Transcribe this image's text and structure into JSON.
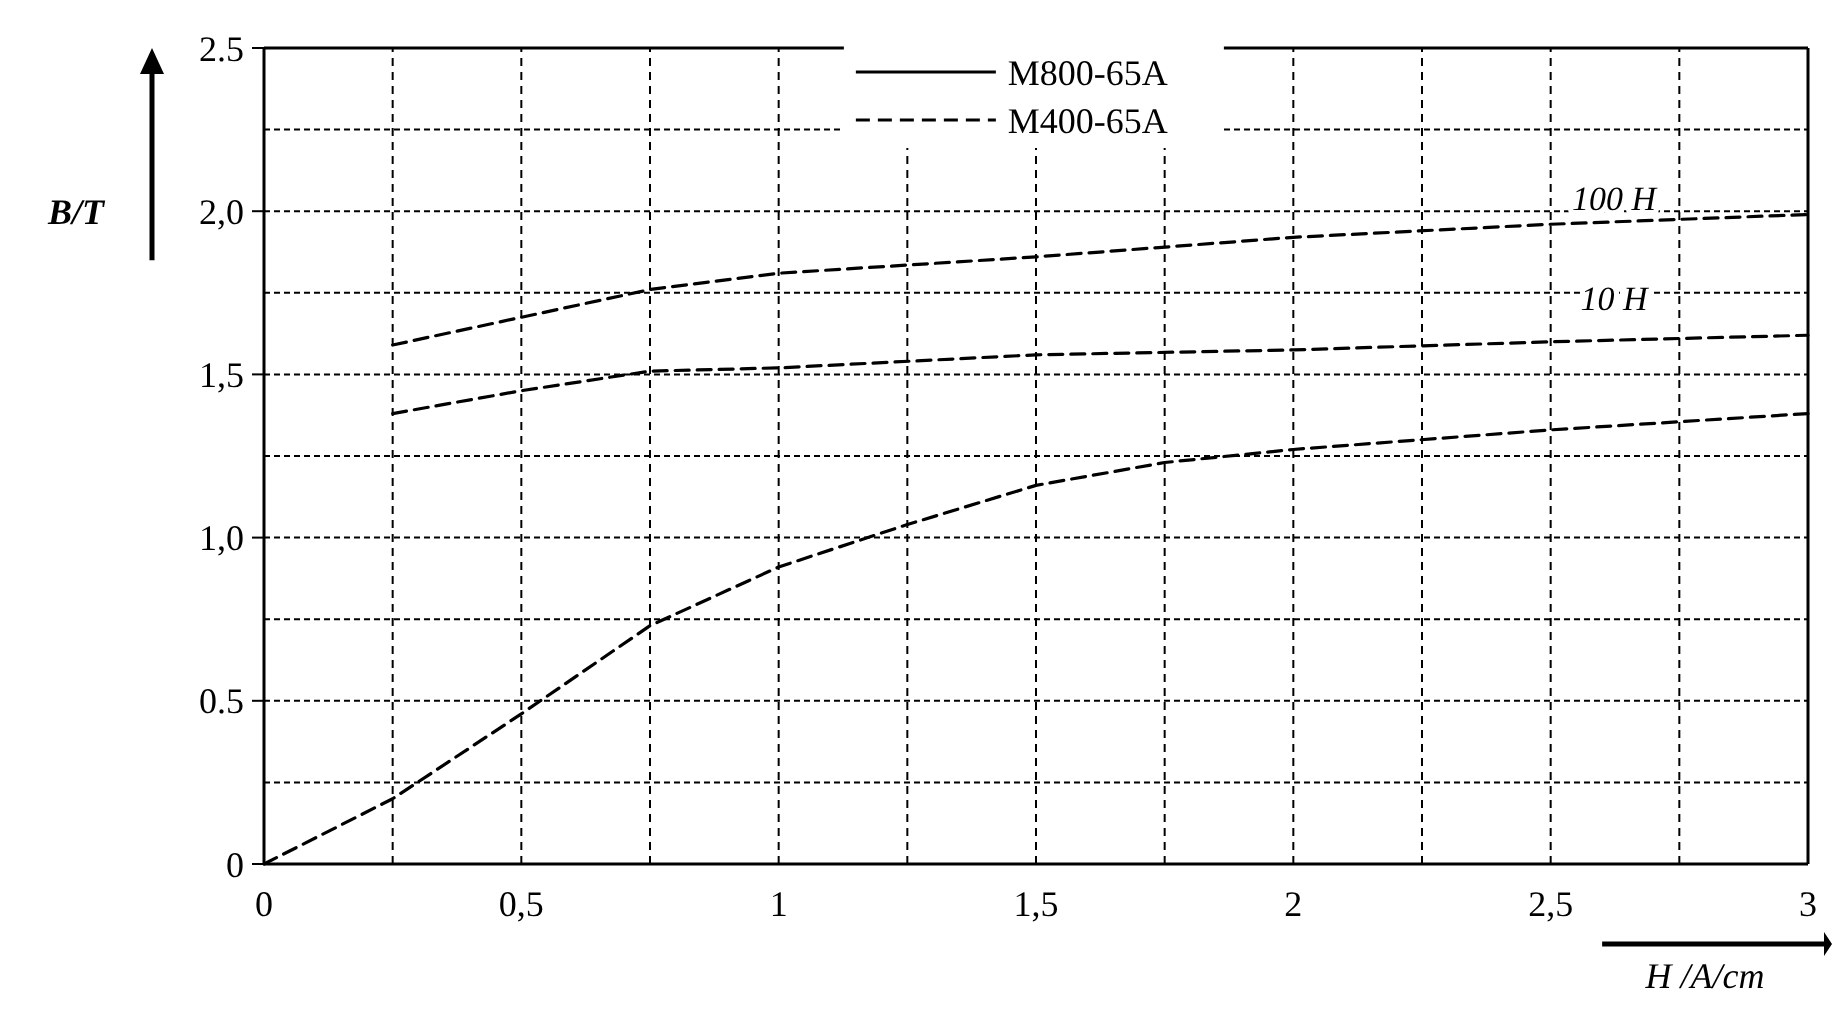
{
  "chart_data": {
    "type": "line",
    "xlabel": "H /A/cm",
    "ylabel": "B/T",
    "xlim": [
      0,
      3
    ],
    "ylim": [
      0,
      2.5
    ],
    "xticks": [
      0,
      {
        "value": 0.25,
        "label": null
      },
      {
        "value": 0.5,
        "label": "0,5"
      },
      {
        "value": 0.75,
        "label": null
      },
      1,
      {
        "value": 1.25,
        "label": null
      },
      {
        "value": 1.5,
        "label": "1,5"
      },
      {
        "value": 1.75,
        "label": null
      },
      2,
      {
        "value": 2.25,
        "label": null
      },
      {
        "value": 2.5,
        "label": "2,5"
      },
      {
        "value": 2.75,
        "label": null
      },
      3
    ],
    "yticks": [
      0,
      {
        "value": 0.25,
        "label": null
      },
      0.5,
      {
        "value": 0.75,
        "label": null
      },
      {
        "value": 1,
        "label": "1,0"
      },
      {
        "value": 1.25,
        "label": null
      },
      {
        "value": 1.5,
        "label": "1,5"
      },
      {
        "value": 1.75,
        "label": null
      },
      {
        "value": 2,
        "label": "2,0"
      },
      {
        "value": 2.25,
        "label": null
      },
      2.5
    ],
    "grid": true,
    "legend": "top",
    "series": [
      {
        "name": "M800-65A",
        "color": "#000000",
        "line_style": "solid"
      },
      {
        "name": "M400-65A",
        "color": "#000000",
        "line_style": "dashed",
        "x": [
          0,
          0.25,
          0.5,
          0.75,
          1,
          1.25,
          1.5,
          1.75,
          2,
          2.5,
          3
        ],
        "values": [
          0,
          0.2,
          0.46,
          0.73,
          0.91,
          1.04,
          1.16,
          1.23,
          1.27,
          1.33,
          1.38
        ]
      },
      {
        "color": "#000000",
        "line_style": "dashed",
        "x": [
          0.25,
          0.5,
          0.75,
          1,
          1.5,
          2,
          2.5,
          3
        ],
        "values": [
          1.38,
          1.45,
          1.51,
          1.52,
          1.56,
          1.575,
          1.6,
          1.62
        ]
      },
      {
        "color": "#000000",
        "line_style": "dashed",
        "x": [
          0.25,
          0.75,
          1,
          1.5,
          2,
          2.5,
          3
        ],
        "values": [
          1.59,
          1.76,
          1.81,
          1.86,
          1.92,
          1.96,
          1.99
        ]
      }
    ],
    "annotations": [
      "100 H",
      "10 H"
    ]
  }
}
